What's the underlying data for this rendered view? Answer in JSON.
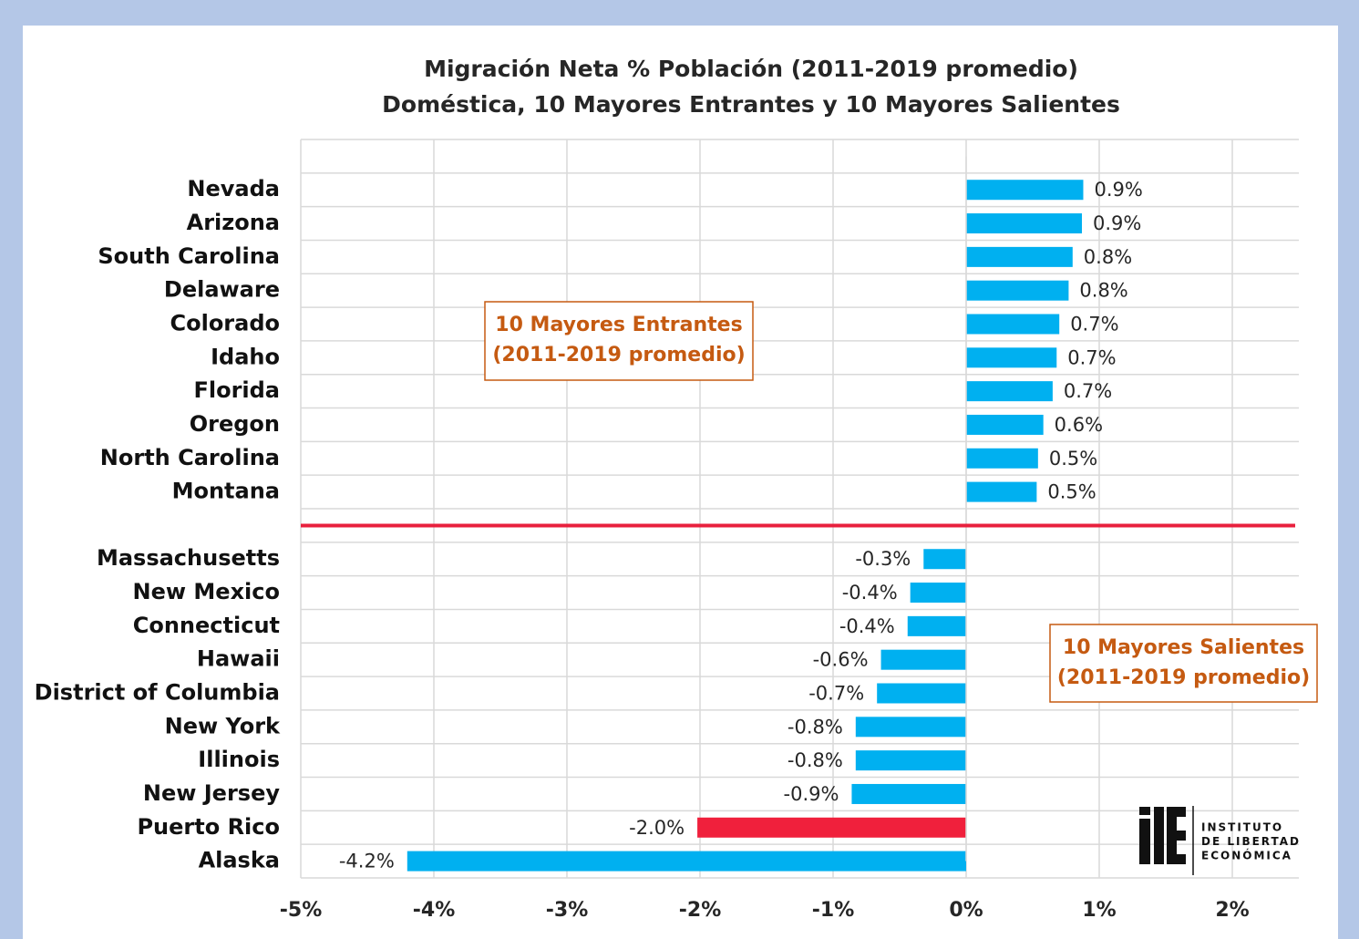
{
  "chart_data": {
    "type": "bar",
    "orientation": "horizontal",
    "title": [
      "Migración Neta % Población (2011-2019 promedio)",
      "Doméstica, 10 Mayores Entrantes y 10 Mayores Salientes"
    ],
    "categories": [
      "Nevada",
      "Arizona",
      "South Carolina",
      "Delaware",
      "Colorado",
      "Idaho",
      "Florida",
      "Oregon",
      "North Carolina",
      "Montana",
      "Massachusetts",
      "New Mexico",
      "Connecticut",
      "Hawaii",
      "District of Columbia",
      "New York",
      "Illinois",
      "New Jersey",
      "Puerto Rico",
      "Alaska"
    ],
    "values": [
      0.88,
      0.87,
      0.8,
      0.77,
      0.7,
      0.68,
      0.65,
      0.58,
      0.54,
      0.53,
      -0.32,
      -0.42,
      -0.44,
      -0.64,
      -0.67,
      -0.83,
      -0.83,
      -0.86,
      -2.02,
      -4.2
    ],
    "value_labels": [
      "0.9%",
      "0.9%",
      "0.8%",
      "0.8%",
      "0.7%",
      "0.7%",
      "0.7%",
      "0.6%",
      "0.5%",
      "0.5%",
      "-0.3%",
      "-0.4%",
      "-0.4%",
      "-0.6%",
      "-0.7%",
      "-0.8%",
      "-0.8%",
      "-0.9%",
      "-2.0%",
      "-4.2%"
    ],
    "bar_colors": [
      "#00b0f0",
      "#00b0f0",
      "#00b0f0",
      "#00b0f0",
      "#00b0f0",
      "#00b0f0",
      "#00b0f0",
      "#00b0f0",
      "#00b0f0",
      "#00b0f0",
      "#00b0f0",
      "#00b0f0",
      "#00b0f0",
      "#00b0f0",
      "#00b0f0",
      "#00b0f0",
      "#00b0f0",
      "#00b0f0",
      "#f0203c",
      "#00b0f0"
    ],
    "xlim": [
      -5,
      2.5
    ],
    "xticks": [
      {
        "value": -5,
        "label": "-5%"
      },
      {
        "value": -4,
        "label": "-4%"
      },
      {
        "value": -3,
        "label": "-3%"
      },
      {
        "value": -2,
        "label": "-2%"
      },
      {
        "value": -1,
        "label": "-1%"
      },
      {
        "value": 0,
        "label": "0%"
      },
      {
        "value": 1,
        "label": "1%"
      },
      {
        "value": 2,
        "label": "2%"
      }
    ],
    "grid": true,
    "annotations": [
      {
        "lines": [
          "10 Mayores Entrantes",
          "(2011-2019 promedio)"
        ]
      },
      {
        "lines": [
          "10 Mayores Salientes",
          "(2011-2019 promedio)"
        ]
      }
    ],
    "logo": {
      "lines": [
        "INSTITUTO",
        "DE LIBERTAD",
        "ECONÓMICA"
      ]
    }
  }
}
